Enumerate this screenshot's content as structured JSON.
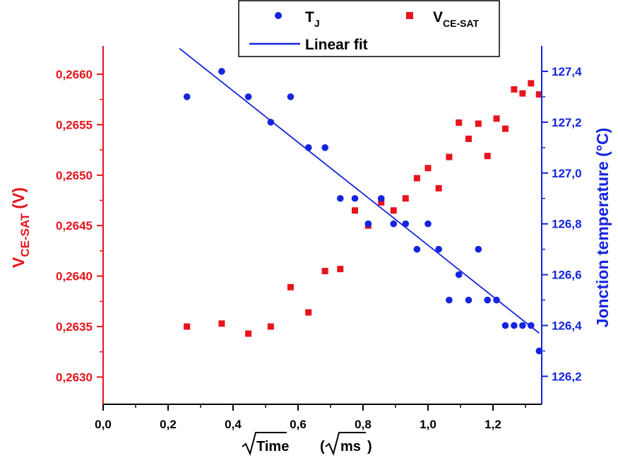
{
  "chart_data": {
    "type": "scatter",
    "x": {
      "label_main": "Time",
      "label_unit": "ms",
      "range": [
        0,
        1.35
      ],
      "ticks": [
        0.0,
        0.2,
        0.4,
        0.6,
        0.8,
        1.0,
        1.2
      ],
      "tick_labels": [
        "0,0",
        "0,2",
        "0,4",
        "0,6",
        "0,8",
        "1,0",
        "1,2"
      ]
    },
    "y_left": {
      "label_main": "V",
      "label_sub": "CE-SAT",
      "label_unit": "(V)",
      "range": [
        0.26273,
        0.26628
      ],
      "ticks": [
        0.263,
        0.2635,
        0.264,
        0.2645,
        0.265,
        0.2655,
        0.266
      ],
      "tick_labels": [
        "0,2630",
        "0,2635",
        "0,2640",
        "0,2645",
        "0,2650",
        "0,2655",
        "0,2660"
      ],
      "color": "#e8141c"
    },
    "y_right": {
      "label": "Jonction temperature (°C)",
      "range": [
        126.09,
        127.5
      ],
      "ticks": [
        126.2,
        126.4,
        126.6,
        126.8,
        127.0,
        127.2,
        127.4
      ],
      "tick_labels": [
        "126,2",
        "126,4",
        "126,6",
        "126,8",
        "127,0",
        "127,2",
        "127,4"
      ],
      "color": "#1424e0"
    },
    "series": [
      {
        "name_main": "T",
        "name_sub": "J",
        "marker": "circle",
        "axis": "right",
        "color": "#1424e0",
        "points": [
          [
            0.258,
            127.3
          ],
          [
            0.365,
            127.4
          ],
          [
            0.447,
            127.3
          ],
          [
            0.516,
            127.2
          ],
          [
            0.577,
            127.3
          ],
          [
            0.632,
            127.1
          ],
          [
            0.683,
            127.1
          ],
          [
            0.73,
            126.9
          ],
          [
            0.775,
            126.9
          ],
          [
            0.816,
            126.8
          ],
          [
            0.856,
            126.9
          ],
          [
            0.894,
            126.8
          ],
          [
            0.931,
            126.8
          ],
          [
            0.966,
            126.7
          ],
          [
            1.0,
            126.8
          ],
          [
            1.033,
            126.7
          ],
          [
            1.065,
            126.5
          ],
          [
            1.095,
            126.6
          ],
          [
            1.125,
            126.5
          ],
          [
            1.155,
            126.7
          ],
          [
            1.183,
            126.5
          ],
          [
            1.211,
            126.5
          ],
          [
            1.238,
            126.4
          ],
          [
            1.265,
            126.4
          ],
          [
            1.291,
            126.4
          ],
          [
            1.317,
            126.4
          ],
          [
            1.342,
            126.3
          ]
        ]
      },
      {
        "name_main": "V",
        "name_sub": "CE-SAT",
        "marker": "square",
        "axis": "left",
        "color": "#e8141c",
        "points": [
          [
            0.258,
            0.2635
          ],
          [
            0.365,
            0.26353
          ],
          [
            0.447,
            0.26343
          ],
          [
            0.516,
            0.2635
          ],
          [
            0.577,
            0.26389
          ],
          [
            0.632,
            0.26364
          ],
          [
            0.683,
            0.26405
          ],
          [
            0.73,
            0.26407
          ],
          [
            0.775,
            0.26465
          ],
          [
            0.816,
            0.2645
          ],
          [
            0.856,
            0.26473
          ],
          [
            0.894,
            0.26465
          ],
          [
            0.931,
            0.26477
          ],
          [
            0.966,
            0.26497
          ],
          [
            1.0,
            0.26507
          ],
          [
            1.033,
            0.26487
          ],
          [
            1.065,
            0.26518
          ],
          [
            1.095,
            0.26552
          ],
          [
            1.125,
            0.26536
          ],
          [
            1.155,
            0.26551
          ],
          [
            1.183,
            0.26519
          ],
          [
            1.211,
            0.26556
          ],
          [
            1.238,
            0.26546
          ],
          [
            1.265,
            0.26585
          ],
          [
            1.291,
            0.26581
          ],
          [
            1.317,
            0.26591
          ],
          [
            1.342,
            0.2658
          ]
        ]
      },
      {
        "name": "Linear fit",
        "type": "line",
        "axis": "right",
        "color": "#1424e0",
        "points": [
          [
            0.235,
            127.49
          ],
          [
            1.342,
            126.37
          ]
        ]
      }
    ]
  }
}
